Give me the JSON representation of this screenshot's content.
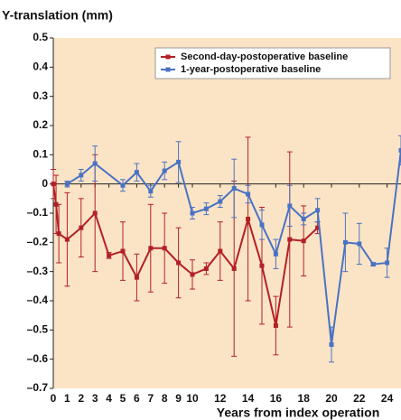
{
  "chart_data": {
    "type": "line",
    "y_label": "Y-translation (mm)",
    "x_label": "Years from index operation",
    "xlim": [
      0,
      25
    ],
    "ylim": [
      -0.7,
      0.5
    ],
    "xticks": [
      0,
      1,
      2,
      3,
      4,
      5,
      6,
      7,
      8,
      9,
      10,
      12,
      14,
      16,
      18,
      20,
      22,
      24
    ],
    "yticks": [
      0.5,
      0.4,
      0.3,
      0.2,
      0.1,
      0,
      {
        "value": -0.1,
        "label": "–0.1"
      },
      {
        "value": -0.2,
        "label": "–0.2"
      },
      {
        "value": -0.3,
        "label": "–0.3"
      },
      {
        "value": -0.4,
        "label": "–0.4"
      },
      {
        "value": -0.5,
        "label": "–0.5"
      },
      {
        "value": -0.6,
        "label": "–0.6"
      },
      {
        "value": -0.7,
        "label": "–0.7"
      }
    ],
    "grid": false,
    "legend": "upper right",
    "series": [
      {
        "name": "Second-day-postoperative baseline",
        "color": "#b22026",
        "x": [
          0,
          0.2,
          0.4,
          1,
          2,
          3,
          4,
          5,
          6,
          7,
          8,
          9,
          10,
          11,
          12,
          13,
          14,
          15,
          16,
          17,
          18,
          19
        ],
        "values": [
          0,
          -0.07,
          -0.17,
          -0.19,
          -0.15,
          -0.1,
          -0.245,
          -0.23,
          -0.32,
          -0.22,
          -0.22,
          -0.27,
          -0.31,
          -0.29,
          -0.23,
          -0.29,
          -0.12,
          -0.28,
          -0.485,
          -0.19,
          -0.195,
          -0.15
        ],
        "errors": [
          0.05,
          0.1,
          0.1,
          0.16,
          0.1,
          0.2,
          0.01,
          0.1,
          0.08,
          0.15,
          0.12,
          0.12,
          0.05,
          0.02,
          0.1,
          0.3,
          0.28,
          0.2,
          0.1,
          0.3,
          0.12,
          0.02
        ]
      },
      {
        "name": "1-year-postoperative baseline",
        "color": "#4a72c4",
        "x": [
          1,
          2,
          3,
          5,
          6,
          7,
          8,
          9,
          10,
          11,
          12,
          13,
          14,
          15,
          16,
          17,
          18,
          19,
          20,
          21,
          22,
          23,
          24,
          25
        ],
        "values": [
          0,
          0.03,
          0.07,
          -0.005,
          0.04,
          -0.025,
          0.045,
          0.075,
          -0.1,
          -0.085,
          -0.06,
          -0.015,
          -0.035,
          -0.14,
          -0.24,
          -0.075,
          -0.12,
          -0.09,
          -0.55,
          -0.2,
          -0.205,
          -0.275,
          -0.27,
          0.115
        ],
        "errors": [
          0.01,
          0.02,
          0.06,
          0.02,
          0.03,
          0.02,
          0.03,
          0.07,
          0.02,
          0.02,
          0.02,
          0.1,
          0.03,
          0.05,
          0.05,
          0.07,
          0.02,
          0.04,
          0.06,
          0.1,
          0.07,
          0.005,
          0.05,
          0.05
        ]
      }
    ]
  }
}
